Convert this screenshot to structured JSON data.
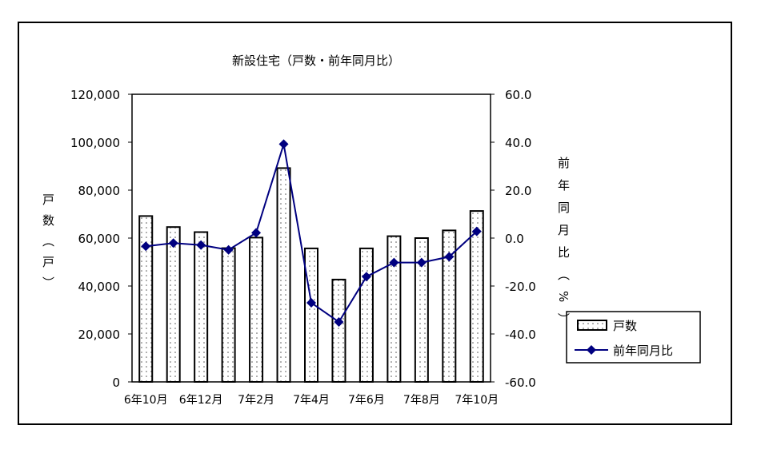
{
  "chart_data": {
    "type": "bar+line",
    "title": "新設住宅（戸数・前年同月比）",
    "categories": [
      "6年10月",
      "",
      "6年12月",
      "",
      "7年2月",
      "",
      "7年4月",
      "",
      "7年6月",
      "",
      "7年8月",
      "",
      "7年10月"
    ],
    "ylabel": "戸数（戸）",
    "y2label": "前年同月比（%）",
    "ylim": [
      0,
      120000
    ],
    "y2lim": [
      -60,
      60
    ],
    "yticks": [
      "0",
      "20,000",
      "40,000",
      "60,000",
      "80,000",
      "100,000",
      "120,000"
    ],
    "y2ticks": [
      "-60.0",
      "-40.0",
      "-20.0",
      "0.0",
      "20.0",
      "40.0",
      "60.0"
    ],
    "series": [
      {
        "name": "戸数",
        "type": "bar",
        "axis": "left",
        "values": [
          69200,
          64600,
          62500,
          55800,
          60200,
          89200,
          55700,
          42700,
          55700,
          60800,
          60000,
          63200,
          71300
        ]
      },
      {
        "name": "前年同月比",
        "type": "line",
        "axis": "right",
        "color": "#000080",
        "values": [
          -3.4,
          -2.1,
          -2.9,
          -4.9,
          2.2,
          39.2,
          -27.0,
          -35.0,
          -16.1,
          -10.2,
          -10.2,
          -7.8,
          2.8
        ]
      }
    ],
    "legend": "right"
  }
}
